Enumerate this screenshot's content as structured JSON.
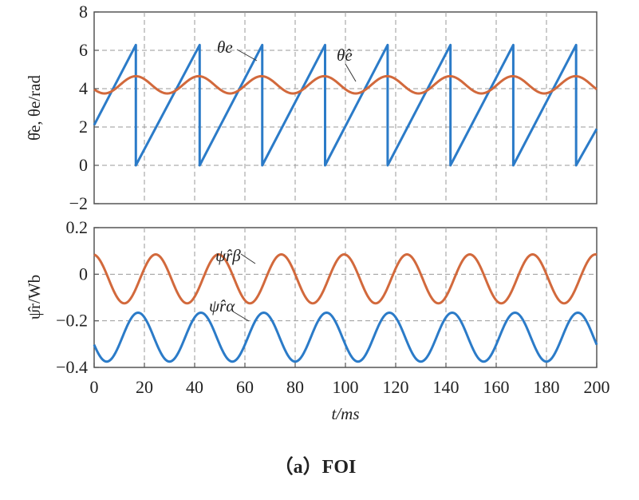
{
  "caption": "（a）FOI",
  "chart_data": [
    {
      "type": "line",
      "ylabel": "θ̂e, θe/rad",
      "xlim": [
        0,
        200
      ],
      "ylim": [
        -2,
        8
      ],
      "yticks": [
        "8",
        "6",
        "4",
        "2",
        "0",
        "−2"
      ],
      "grid": true,
      "annotations": [
        {
          "text": "θe",
          "series": "θe",
          "x": 50,
          "y": 5.8
        },
        {
          "text": "θ̂e",
          "series": "θ̂e",
          "x": 105,
          "y": 4.5
        }
      ],
      "series": [
        {
          "name": "θe",
          "color": "#2b7bc8",
          "form": "sawtooth",
          "period_ms": 25,
          "min": 0,
          "max": 6.28,
          "start_value": 2.1,
          "wrap_times_ms": [
            16.6,
            42.0,
            66.9,
            91.9,
            116.8,
            141.8,
            166.8,
            191.8
          ],
          "end_value": 1.9
        },
        {
          "name": "θ̂e",
          "color": "#d2693c",
          "form": "sinusoid",
          "mean": 4.2,
          "amplitude": 0.45,
          "period_ms": 25,
          "first_peak_ms": 16.6
        }
      ]
    },
    {
      "type": "line",
      "ylabel": "ψ̂r/Wb",
      "xlabel": "t/ms",
      "xlim": [
        0,
        200
      ],
      "ylim": [
        -0.4,
        0.2
      ],
      "xticks": [
        "0",
        "20",
        "40",
        "60",
        "80",
        "100",
        "120",
        "140",
        "160",
        "180",
        "200"
      ],
      "yticks": [
        "0.2",
        "0",
        "−0.2",
        "−0.4"
      ],
      "grid": true,
      "annotations": [
        {
          "text": "ψ̂rβ",
          "series": "ψ̂rβ",
          "x": 62,
          "y": 0.06
        },
        {
          "text": "ψ̂rα",
          "series": "ψ̂rα",
          "x": 62,
          "y": -0.19
        }
      ],
      "series": [
        {
          "name": "ψ̂rβ",
          "color": "#d2693c",
          "form": "sinusoid",
          "mean": -0.02,
          "amplitude": 0.105,
          "period_ms": 25,
          "first_peak_ms": 24.5,
          "start_value": 0.07
        },
        {
          "name": "ψ̂rα",
          "color": "#2b7bc8",
          "form": "sinusoid",
          "mean": -0.27,
          "amplitude": 0.105,
          "period_ms": 25,
          "first_peak_ms": 17.5,
          "start_value": -0.3
        }
      ]
    }
  ]
}
